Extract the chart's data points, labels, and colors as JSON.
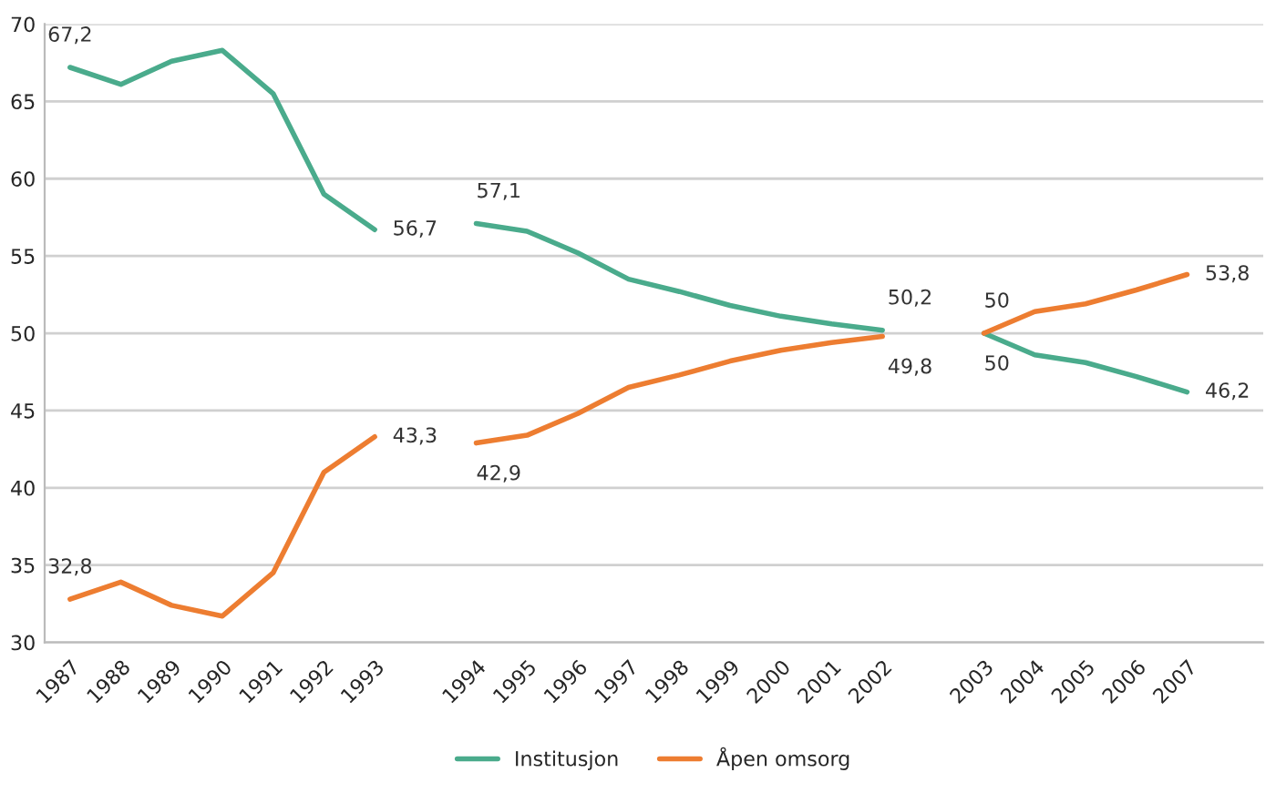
{
  "chart_data": {
    "type": "line",
    "categories": [
      "1987",
      "1988",
      "1989",
      "1990",
      "1991",
      "1992",
      "1993",
      null,
      "1994",
      "1995",
      "1996",
      "1997",
      "1998",
      "1999",
      "2000",
      "2001",
      "2002",
      null,
      "2003",
      "2004",
      "2005",
      "2006",
      "2007",
      null
    ],
    "series": [
      {
        "name": "Institusjon",
        "color": "#4aab8c",
        "values": [
          67.2,
          66.1,
          67.6,
          68.3,
          65.5,
          59.0,
          56.7,
          null,
          57.1,
          56.6,
          55.2,
          53.5,
          52.7,
          51.8,
          51.1,
          50.6,
          50.2,
          null,
          50,
          48.6,
          48.1,
          47.2,
          46.2,
          null
        ],
        "value_labels": [
          "67,2",
          null,
          null,
          null,
          null,
          null,
          "56,7",
          null,
          "57,1",
          null,
          null,
          null,
          null,
          null,
          null,
          null,
          "50,2",
          null,
          "50",
          null,
          null,
          null,
          "46,2",
          null
        ]
      },
      {
        "name": "Åpen omsorg",
        "color": "#ed7d31",
        "values": [
          32.8,
          33.9,
          32.4,
          31.7,
          34.5,
          41.0,
          43.3,
          null,
          42.9,
          43.4,
          44.8,
          46.5,
          47.3,
          48.2,
          48.9,
          49.4,
          49.8,
          null,
          50,
          51.4,
          51.9,
          52.8,
          53.8,
          null
        ],
        "value_labels": [
          "32,8",
          null,
          null,
          null,
          null,
          null,
          "43,3",
          null,
          "42,9",
          null,
          null,
          null,
          null,
          null,
          null,
          null,
          "49,8",
          null,
          "50",
          null,
          null,
          null,
          "53,8",
          null
        ]
      }
    ],
    "ylim": [
      30,
      70
    ],
    "yticks": [
      30,
      35,
      40,
      45,
      50,
      55,
      60,
      65,
      70
    ],
    "grid": "y",
    "legend": "bottom",
    "marker": "none",
    "line_style": "solid"
  }
}
